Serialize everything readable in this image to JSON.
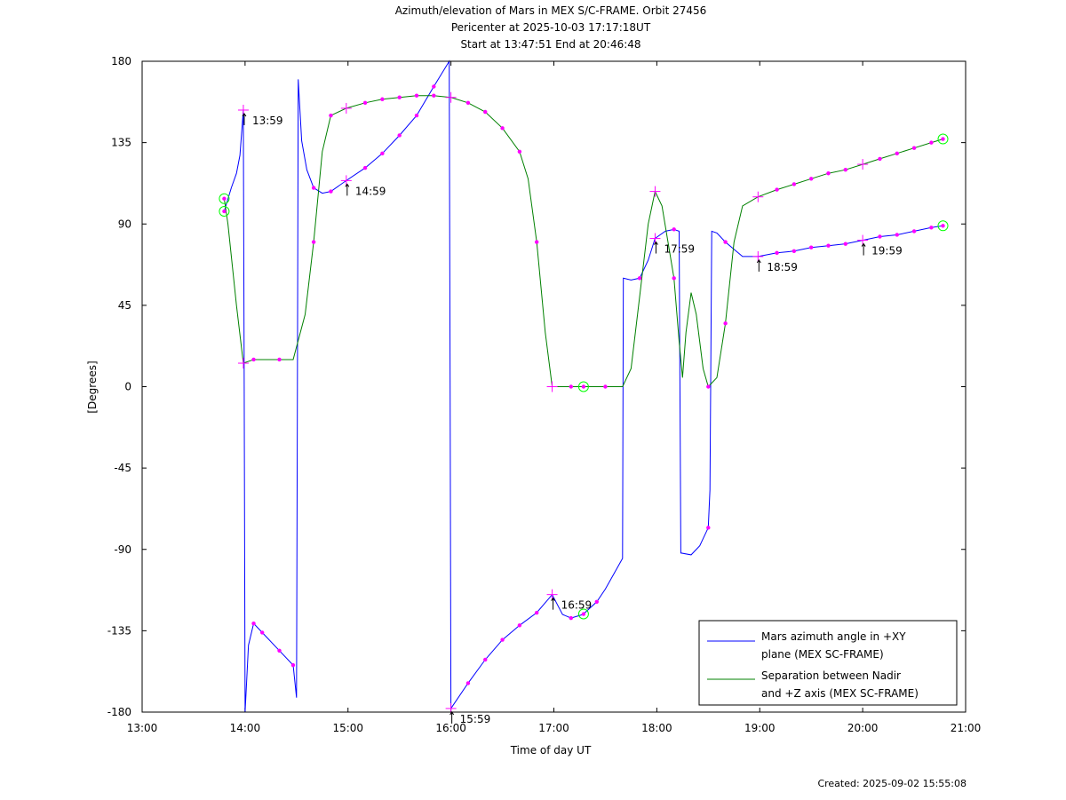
{
  "header": {
    "title": "Azimuth/elevation of Mars in MEX S/C-FRAME.  Orbit 27456",
    "pericenter": "Pericenter at 2025-10-03 17:17:18UT",
    "start_end": "Start at 13:47:51 End at 20:46:48"
  },
  "footer": {
    "created": "Created: 2025-09-02 15:55:08"
  },
  "colors": {
    "azimuth": "#0000ff",
    "separation": "#008000",
    "marker": "#ff00ff",
    "circle": "#00ff00"
  },
  "chart_data": {
    "type": "line",
    "xlabel": "Time of day UT",
    "ylabel": "[Degrees]",
    "xlim": [
      "13:00",
      "21:00"
    ],
    "ylim": [
      -180,
      180
    ],
    "xticks": [
      "13:00",
      "14:00",
      "15:00",
      "16:00",
      "17:00",
      "18:00",
      "19:00",
      "20:00",
      "21:00"
    ],
    "yticks": [
      180,
      135,
      90,
      45,
      0,
      -45,
      -90,
      -135,
      -180
    ],
    "legend": {
      "position": "bottom-right",
      "entries": [
        {
          "series": "azimuth",
          "line1": "Mars azimuth angle in +XY",
          "line2": "plane (MEX SC-FRAME)"
        },
        {
          "series": "separation",
          "line1": "Separation between Nadir",
          "line2": "and +Z axis (MEX SC-FRAME)"
        }
      ]
    },
    "series": [
      {
        "name": "Mars azimuth angle in +XY plane (MEX SC-FRAME)",
        "key": "azimuth",
        "points": [
          [
            "13:47:51",
            97
          ],
          [
            "13:52",
            110
          ],
          [
            "13:55",
            118
          ],
          [
            "13:57",
            128
          ],
          [
            "13:59",
            153
          ],
          [
            "13:59:30",
            0
          ],
          [
            "14:00",
            -180
          ],
          [
            "14:02",
            -143
          ],
          [
            "14:05",
            -131
          ],
          [
            "14:10",
            -136
          ],
          [
            "14:20",
            -146
          ],
          [
            "14:28",
            -154
          ],
          [
            "14:30",
            -172
          ],
          [
            "14:30:30",
            0
          ],
          [
            "14:31",
            170
          ],
          [
            "14:33",
            136
          ],
          [
            "14:36",
            120
          ],
          [
            "14:40",
            110
          ],
          [
            "14:45",
            107
          ],
          [
            "14:50",
            108
          ],
          [
            "14:59",
            114
          ],
          [
            "15:10",
            121
          ],
          [
            "15:20",
            129
          ],
          [
            "15:30",
            139
          ],
          [
            "15:40",
            150
          ],
          [
            "15:50",
            166
          ],
          [
            "15:59",
            180
          ],
          [
            "15:59:30",
            0
          ],
          [
            "16:00",
            -178
          ],
          [
            "16:10",
            -164
          ],
          [
            "16:20",
            -151
          ],
          [
            "16:30",
            -140
          ],
          [
            "16:40",
            -132
          ],
          [
            "16:50",
            -125
          ],
          [
            "16:59",
            -115
          ],
          [
            "17:05",
            -126
          ],
          [
            "17:10",
            -128
          ],
          [
            "17:17",
            -126
          ],
          [
            "17:25",
            -119
          ],
          [
            "17:30",
            -112
          ],
          [
            "17:40",
            -95
          ],
          [
            "17:40:30",
            60
          ],
          [
            "17:45",
            59
          ],
          [
            "17:50",
            60
          ],
          [
            "17:55",
            70
          ],
          [
            "17:59",
            82
          ],
          [
            "18:05",
            86
          ],
          [
            "18:10",
            87
          ],
          [
            "18:13",
            86
          ],
          [
            "18:14",
            -92
          ],
          [
            "18:20",
            -93
          ],
          [
            "18:25",
            -88
          ],
          [
            "18:30",
            -78
          ],
          [
            "18:31",
            -57
          ],
          [
            "18:32",
            86
          ],
          [
            "18:35",
            85
          ],
          [
            "18:40",
            80
          ],
          [
            "18:50",
            72
          ],
          [
            "18:59",
            72
          ],
          [
            "19:10",
            74
          ],
          [
            "19:20",
            75
          ],
          [
            "19:30",
            77
          ],
          [
            "19:40",
            78
          ],
          [
            "19:50",
            79
          ],
          [
            "20:00",
            81
          ],
          [
            "20:10",
            83
          ],
          [
            "20:20",
            84
          ],
          [
            "20:30",
            86
          ],
          [
            "20:40",
            88
          ],
          [
            "20:46:48",
            89
          ]
        ],
        "markers": [
          "14:05",
          "14:10",
          "14:20",
          "14:28",
          "14:40",
          "14:50",
          "15:10",
          "15:20",
          "15:30",
          "15:40",
          "15:50",
          "16:10",
          "16:20",
          "16:30",
          "16:40",
          "16:50",
          "17:10",
          "17:25",
          "17:50",
          "18:10",
          "18:30",
          "18:40",
          "19:10",
          "19:20",
          "19:30",
          "19:40",
          "19:50",
          "20:10",
          "20:20",
          "20:30",
          "20:40"
        ],
        "crosses": [
          "13:59",
          "14:59",
          "16:00",
          "16:59",
          "17:59",
          "18:59",
          "20:00"
        ],
        "circles": [
          "13:47:51",
          "17:17:18",
          "20:46:48"
        ]
      },
      {
        "name": "Separation between Nadir and +Z axis (MEX SC-FRAME)",
        "key": "separation",
        "points": [
          [
            "13:47:51",
            104
          ],
          [
            "13:50",
            90
          ],
          [
            "13:55",
            45
          ],
          [
            "13:59",
            13
          ],
          [
            "14:05",
            15
          ],
          [
            "14:20",
            15
          ],
          [
            "14:28",
            15
          ],
          [
            "14:35",
            40
          ],
          [
            "14:40",
            80
          ],
          [
            "14:45",
            130
          ],
          [
            "14:50",
            150
          ],
          [
            "14:59",
            154
          ],
          [
            "15:10",
            157
          ],
          [
            "15:20",
            159
          ],
          [
            "15:30",
            160
          ],
          [
            "15:40",
            161
          ],
          [
            "15:50",
            161
          ],
          [
            "16:00",
            160
          ],
          [
            "16:10",
            157
          ],
          [
            "16:20",
            152
          ],
          [
            "16:30",
            143
          ],
          [
            "16:40",
            130
          ],
          [
            "16:45",
            115
          ],
          [
            "16:50",
            80
          ],
          [
            "16:55",
            30
          ],
          [
            "16:59",
            0
          ],
          [
            "17:10",
            0
          ],
          [
            "17:17:18",
            0
          ],
          [
            "17:30",
            0
          ],
          [
            "17:40",
            0
          ],
          [
            "17:45",
            10
          ],
          [
            "17:50",
            50
          ],
          [
            "17:55",
            90
          ],
          [
            "17:59",
            108
          ],
          [
            "18:03",
            100
          ],
          [
            "18:10",
            60
          ],
          [
            "18:13",
            25
          ],
          [
            "18:15",
            5
          ],
          [
            "18:17",
            30
          ],
          [
            "18:20",
            52
          ],
          [
            "18:23",
            40
          ],
          [
            "18:27",
            10
          ],
          [
            "18:30",
            0
          ],
          [
            "18:35",
            5
          ],
          [
            "18:40",
            35
          ],
          [
            "18:45",
            80
          ],
          [
            "18:50",
            100
          ],
          [
            "18:59",
            105
          ],
          [
            "19:10",
            109
          ],
          [
            "19:20",
            112
          ],
          [
            "19:30",
            115
          ],
          [
            "19:40",
            118
          ],
          [
            "19:50",
            120
          ],
          [
            "20:00",
            123
          ],
          [
            "20:10",
            126
          ],
          [
            "20:20",
            129
          ],
          [
            "20:30",
            132
          ],
          [
            "20:40",
            135
          ],
          [
            "20:46:48",
            137
          ]
        ],
        "markers": [
          "14:05",
          "14:20",
          "14:40",
          "14:50",
          "15:10",
          "15:20",
          "15:30",
          "15:40",
          "15:50",
          "16:10",
          "16:20",
          "16:30",
          "16:40",
          "16:50",
          "17:10",
          "17:30",
          "18:10",
          "18:30",
          "18:40",
          "19:10",
          "19:20",
          "19:30",
          "19:40",
          "19:50",
          "20:10",
          "20:20",
          "20:30",
          "20:40"
        ],
        "crosses": [
          "13:59",
          "14:59",
          "16:00",
          "16:59",
          "17:59",
          "18:59",
          "20:00"
        ],
        "circles": [
          "13:47:51",
          "17:17:18",
          "20:46:48"
        ]
      }
    ],
    "time_labels": [
      {
        "text": "13:59",
        "series": "azimuth",
        "time": "13:59"
      },
      {
        "text": "14:59",
        "series": "azimuth",
        "time": "14:59"
      },
      {
        "text": "15:59",
        "series": "azimuth",
        "time": "16:00"
      },
      {
        "text": "16:59",
        "series": "azimuth",
        "time": "16:59"
      },
      {
        "text": "17:59",
        "series": "azimuth",
        "time": "17:59"
      },
      {
        "text": "18:59",
        "series": "azimuth",
        "time": "18:59"
      },
      {
        "text": "19:59",
        "series": "azimuth",
        "time": "20:00"
      }
    ]
  }
}
